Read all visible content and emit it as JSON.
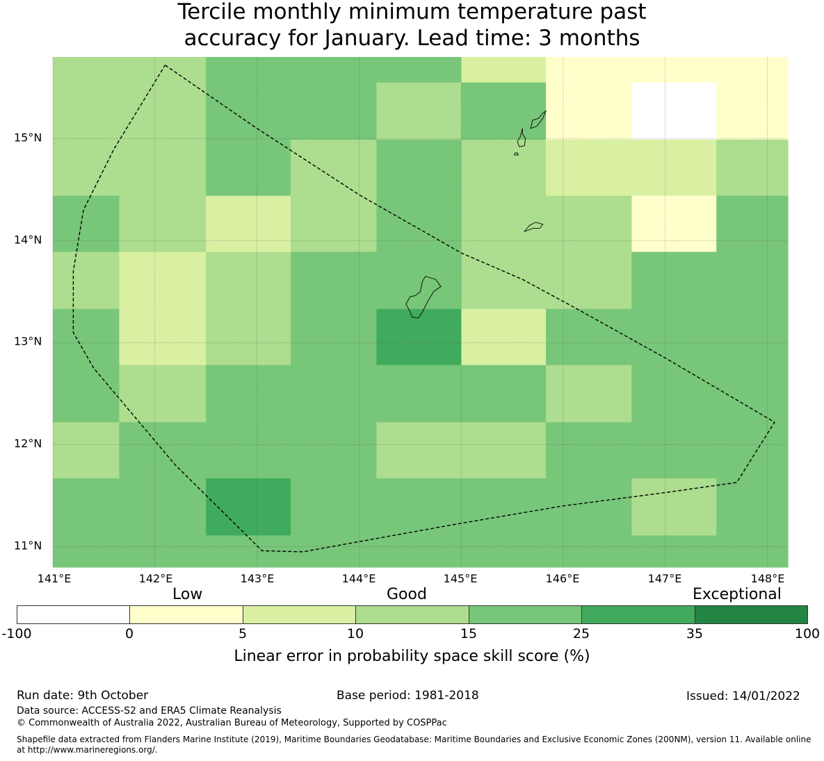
{
  "title": {
    "line1": "Tercile monthly minimum temperature past",
    "line2": "accuracy for January. Lead time: 3 months"
  },
  "map": {
    "lon_min": 141.0,
    "lon_max": 148.2,
    "lat_min": 10.8,
    "lat_max": 15.8,
    "lon_ticks": [
      "141°E",
      "142°E",
      "143°E",
      "144°E",
      "145°E",
      "146°E",
      "147°E",
      "148°E"
    ],
    "lat_ticks": [
      "15°N",
      "14°N",
      "13°N",
      "12°N",
      "11°N"
    ],
    "cell_col_edges_lon": [
      141.0,
      141.65,
      142.5,
      143.33,
      144.17,
      145.0,
      145.83,
      146.67,
      147.5,
      148.2
    ],
    "cell_row_edges_lat": [
      15.8,
      15.55,
      14.99,
      14.44,
      13.89,
      13.33,
      12.78,
      12.22,
      11.67,
      11.11,
      10.8
    ],
    "grid_classes": [
      [
        3,
        3,
        4,
        4,
        4,
        2,
        1,
        1,
        1
      ],
      [
        3,
        3,
        4,
        4,
        3,
        4,
        1,
        0,
        1
      ],
      [
        3,
        3,
        4,
        3,
        4,
        3,
        2,
        2,
        3
      ],
      [
        4,
        3,
        2,
        3,
        4,
        3,
        3,
        1,
        4
      ],
      [
        3,
        2,
        3,
        4,
        4,
        3,
        3,
        4,
        4
      ],
      [
        4,
        2,
        3,
        4,
        5,
        2,
        4,
        4,
        4
      ],
      [
        4,
        3,
        4,
        4,
        4,
        4,
        3,
        4,
        4
      ],
      [
        3,
        4,
        4,
        4,
        3,
        3,
        4,
        4,
        4
      ],
      [
        4,
        4,
        5,
        4,
        4,
        4,
        4,
        3,
        4
      ],
      [
        4,
        4,
        4,
        4,
        4,
        4,
        4,
        4,
        4
      ]
    ],
    "eez_boundary": [
      [
        142.1,
        15.72
      ],
      [
        143.0,
        15.1
      ],
      [
        144.0,
        14.45
      ],
      [
        145.0,
        13.88
      ],
      [
        145.6,
        13.62
      ],
      [
        146.1,
        13.35
      ],
      [
        147.0,
        12.85
      ],
      [
        148.07,
        12.22
      ],
      [
        147.7,
        11.63
      ],
      [
        147.0,
        11.53
      ],
      [
        146.0,
        11.4
      ],
      [
        145.0,
        11.23
      ],
      [
        144.0,
        11.05
      ],
      [
        143.45,
        10.95
      ],
      [
        143.05,
        10.96
      ],
      [
        142.2,
        11.8
      ],
      [
        141.4,
        12.75
      ],
      [
        141.2,
        13.1
      ],
      [
        141.2,
        13.7
      ],
      [
        141.3,
        14.3
      ],
      [
        141.6,
        14.9
      ],
      [
        142.1,
        15.72
      ]
    ],
    "islands": [
      [
        [
          144.62,
          13.6
        ],
        [
          144.65,
          13.65
        ],
        [
          144.75,
          13.62
        ],
        [
          144.8,
          13.55
        ],
        [
          144.73,
          13.5
        ],
        [
          144.67,
          13.4
        ],
        [
          144.62,
          13.3
        ],
        [
          144.58,
          13.24
        ],
        [
          144.52,
          13.25
        ],
        [
          144.5,
          13.3
        ],
        [
          144.46,
          13.38
        ],
        [
          144.5,
          13.45
        ],
        [
          144.55,
          13.46
        ],
        [
          144.6,
          13.5
        ],
        [
          144.62,
          13.6
        ]
      ],
      [
        [
          145.62,
          14.09
        ],
        [
          145.67,
          14.15
        ],
        [
          145.73,
          14.18
        ],
        [
          145.8,
          14.16
        ],
        [
          145.77,
          14.12
        ],
        [
          145.7,
          14.12
        ],
        [
          145.65,
          14.1
        ],
        [
          145.62,
          14.09
        ]
      ],
      [
        [
          145.8,
          15.25
        ],
        [
          145.83,
          15.27
        ],
        [
          145.8,
          15.2
        ],
        [
          145.74,
          15.12
        ],
        [
          145.68,
          15.1
        ],
        [
          145.7,
          15.18
        ],
        [
          145.76,
          15.2
        ],
        [
          145.8,
          15.25
        ]
      ],
      [
        [
          145.6,
          15.1
        ],
        [
          145.6,
          15.05
        ],
        [
          145.63,
          15.0
        ],
        [
          145.62,
          14.93
        ],
        [
          145.57,
          14.92
        ],
        [
          145.55,
          14.97
        ],
        [
          145.58,
          15.02
        ],
        [
          145.6,
          15.1
        ]
      ],
      [
        [
          145.53,
          14.86
        ],
        [
          145.55,
          14.86
        ],
        [
          145.56,
          14.84
        ],
        [
          145.52,
          14.84
        ],
        [
          145.53,
          14.86
        ]
      ]
    ]
  },
  "colorbar": {
    "categories": [
      "Low",
      "Good",
      "Exceptional"
    ],
    "ticks": [
      "-100",
      "0",
      "5",
      "10",
      "15",
      "25",
      "35",
      "100"
    ],
    "colors": [
      "#ffffff",
      "#ffffcc",
      "#d9f0a3",
      "#addd8e",
      "#78c679",
      "#41ab5d",
      "#238443"
    ],
    "label": "Linear error in probability space skill score (%)"
  },
  "footer": {
    "run_date": "Run date: 9th October",
    "base_period": "Base period: 1981-2018",
    "issued": "Issued: 14/01/2022",
    "data_source": "Data source: ACCESS-S2 and ERA5 Climate Reanalysis",
    "copyright": "© Commonwealth of Australia 2022, Australian Bureau of Meteorology, Supported by COSPPac",
    "shapefile_line1": "Shapefile data extracted from Flanders Marine Institute (2019), Maritime Boundaries Geodatabase: Maritime Boundaries and Exclusive Economic Zones (200NM), version 11. Available online",
    "shapefile_line2": "at http://www.marineregions.org/."
  }
}
